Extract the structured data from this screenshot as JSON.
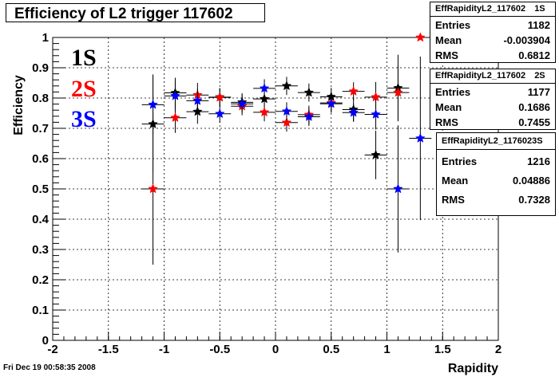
{
  "chart_data": {
    "type": "scatter",
    "title": "Efficiency of L2 trigger 117602",
    "xlabel": "Rapidity",
    "ylabel": "Efficiency",
    "xlim": [
      -2,
      2
    ],
    "ylim": [
      0,
      1
    ],
    "x_ticks": [
      "-2",
      "-1.5",
      "-1",
      "-0.5",
      "0",
      "0.5",
      "1",
      "1.5",
      "2"
    ],
    "y_ticks": [
      "0",
      "0.1",
      "0.2",
      "0.3",
      "0.4",
      "0.5",
      "0.6",
      "0.7",
      "0.8",
      "0.9",
      "1"
    ],
    "grid": true,
    "series": [
      {
        "name": "1S",
        "color": "#000000",
        "x": [
          -1.1,
          -0.9,
          -0.7,
          -0.5,
          -0.3,
          -0.1,
          0.1,
          0.3,
          0.5,
          0.7,
          0.9,
          1.1
        ],
        "y": [
          0.714,
          0.817,
          0.755,
          0.803,
          0.786,
          0.797,
          0.84,
          0.818,
          0.804,
          0.762,
          0.612,
          0.833
        ],
        "yerr": [
          0.16,
          0.05,
          0.04,
          0.03,
          0.03,
          0.03,
          0.03,
          0.03,
          0.03,
          0.04,
          0.08,
          0.11
        ]
      },
      {
        "name": "2S",
        "color": "#ff0000",
        "x": [
          -1.1,
          -0.9,
          -0.7,
          -0.5,
          -0.3,
          -0.1,
          0.1,
          0.3,
          0.5,
          0.7,
          0.9,
          1.1,
          1.3
        ],
        "y": [
          0.5,
          0.735,
          0.81,
          0.802,
          0.773,
          0.753,
          0.719,
          0.745,
          0.784,
          0.822,
          0.803,
          0.818,
          1.0
        ],
        "yerr": [
          0.25,
          0.05,
          0.04,
          0.03,
          0.03,
          0.03,
          0.03,
          0.03,
          0.03,
          0.03,
          0.05,
          0.09,
          0.0
        ]
      },
      {
        "name": "3S",
        "color": "#0000ff",
        "x": [
          -1.1,
          -0.9,
          -0.7,
          -0.5,
          -0.3,
          -0.1,
          0.1,
          0.3,
          0.5,
          0.7,
          0.9,
          1.1,
          1.3
        ],
        "y": [
          0.778,
          0.807,
          0.791,
          0.748,
          0.781,
          0.832,
          0.756,
          0.738,
          0.781,
          0.752,
          0.746,
          0.5,
          0.667
        ],
        "yerr": [
          0.1,
          0.05,
          0.04,
          0.03,
          0.03,
          0.03,
          0.03,
          0.03,
          0.03,
          0.03,
          0.05,
          0.21,
          0.27
        ]
      }
    ],
    "xerr": 0.1
  },
  "legend": [
    {
      "label": "1S",
      "color": "#000000"
    },
    {
      "label": "2S",
      "color": "#ff0000"
    },
    {
      "label": "3S",
      "color": "#0000ff"
    }
  ],
  "stats": [
    {
      "name": "EffRapidityL2_117602",
      "tag": "1S",
      "entries": "1182",
      "mean": "-0.003904",
      "rms": "0.6812"
    },
    {
      "name": "EffRapidityL2_117602",
      "tag": "2S",
      "entries": "1177",
      "mean": "0.1686",
      "rms": "0.7455"
    },
    {
      "name": "EffRapidityL2_117602",
      "tag": "3S",
      "entries": "1216",
      "mean": "0.04886",
      "rms": "0.7328"
    }
  ],
  "stat_labels": {
    "entries": "Entries",
    "mean": "Mean",
    "rms": "RMS"
  },
  "footer": "Fri Dec 19 00:58:35 2008"
}
